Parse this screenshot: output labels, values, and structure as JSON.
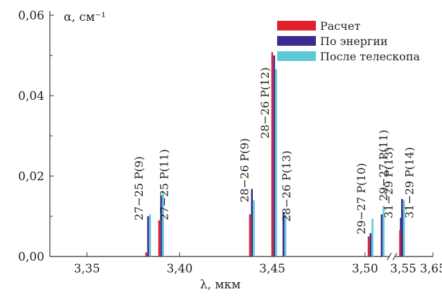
{
  "chart_data": {
    "type": "bar",
    "title": "",
    "xlabel": "λ, мкм",
    "ylabel": "α, см⁻¹",
    "xlim": [
      3.33,
      3.65
    ],
    "ylim": [
      0,
      0.06
    ],
    "x_break": 3.515,
    "x_ticks": [
      {
        "v": 3.35,
        "label": "3,35"
      },
      {
        "v": 3.4,
        "label": "3,40"
      },
      {
        "v": 3.45,
        "label": "3,45"
      },
      {
        "v": 3.5,
        "label": "3,50"
      },
      {
        "v": 3.55,
        "label": "3,55"
      },
      {
        "v": 3.65,
        "label": "3,65"
      }
    ],
    "y_ticks": [
      {
        "v": 0.0,
        "label": "0,00"
      },
      {
        "v": 0.02,
        "label": "0,02"
      },
      {
        "v": 0.04,
        "label": "0,04"
      },
      {
        "v": 0.06,
        "label": "0,06"
      }
    ],
    "legend_position": "top-right",
    "series": [
      {
        "name": "Расчет",
        "color": "#e0202a"
      },
      {
        "name": "По энергии",
        "color": "#3a2b8e"
      },
      {
        "name": "После телескопа",
        "color": "#5ec8d8"
      }
    ],
    "lines": [
      {
        "label": "27−25 P(9)",
        "x": 3.383,
        "values": [
          0.001,
          0.01,
          0.0105
        ]
      },
      {
        "label": "27−25 P(11)",
        "x": 3.39,
        "values": [
          0.009,
          0.015,
          0.0163
        ]
      },
      {
        "label": "28−26 P(9)",
        "x": 3.439,
        "values": [
          0.0105,
          0.0168,
          0.014
        ]
      },
      {
        "label": "28−26 P(12)",
        "x": 3.451,
        "values": [
          0.0508,
          0.05,
          0.0466
        ]
      },
      {
        "label": "28−26 P(13)",
        "x": 3.456,
        "values": [
          0.0,
          0.011,
          0.0105
        ]
      },
      {
        "label": "29−27 P(10)",
        "x": 3.503,
        "values": [
          0.005,
          0.0058,
          0.0094
        ]
      },
      {
        "label": "29−27 P(11)",
        "x": 3.509,
        "values": [
          0.0,
          0.0105,
          0.0126
        ]
      },
      {
        "label": "31−29 P(13)",
        "x": 3.542,
        "values": [
          0.0,
          0.0096,
          0.0115
        ]
      },
      {
        "label": "31−29 P(14)",
        "x": 3.546,
        "values": [
          0.0066,
          0.0143,
          0.014
        ]
      }
    ]
  }
}
